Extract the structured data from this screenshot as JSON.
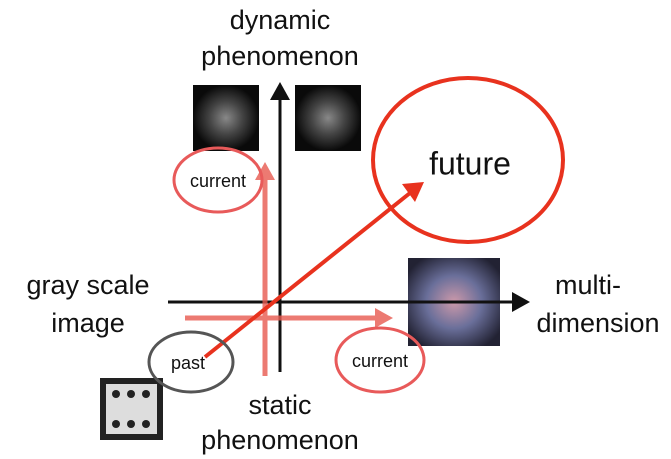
{
  "axis_labels": {
    "top": [
      "dynamic",
      "phenomenon"
    ],
    "bottom": [
      "static",
      "phenomenon"
    ],
    "left": [
      "gray scale",
      "image"
    ],
    "right": [
      "multi-",
      "dimension"
    ]
  },
  "markers": {
    "future": "future",
    "past": "past",
    "current_vertical": "current",
    "current_horizontal": "current"
  }
}
